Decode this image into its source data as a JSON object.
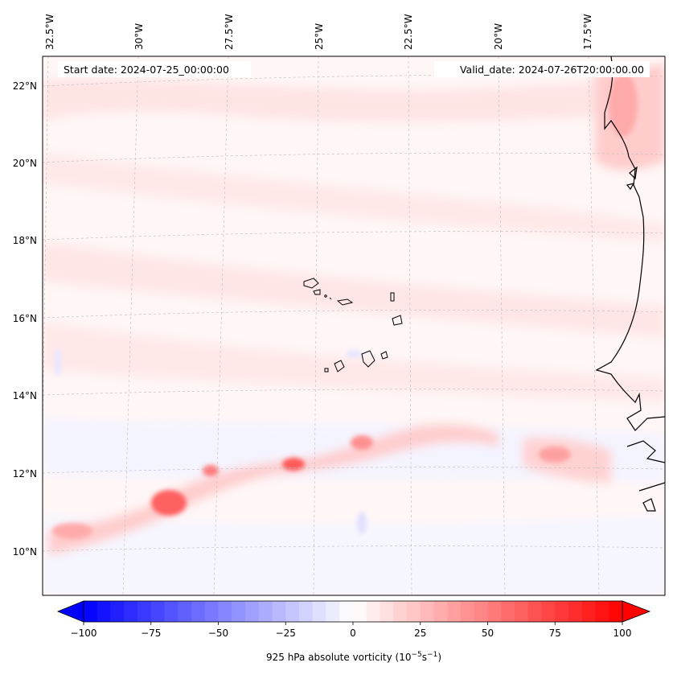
{
  "header": {
    "start_date": "Start date: 2024-07-25_00:00:00",
    "valid_date": "Valid_date: 2024-07-26T20:00:00.00"
  },
  "longitude_labels": [
    "32.5°W",
    "30°W",
    "27.5°W",
    "25°W",
    "22.5°W",
    "20°W",
    "17.5°W"
  ],
  "latitude_labels": [
    "22°N",
    "20°N",
    "18°N",
    "16°N",
    "14°N",
    "12°N",
    "10°N"
  ],
  "colorbar": {
    "ticks": [
      "−100",
      "−75",
      "−50",
      "−25",
      "0",
      "25",
      "50",
      "75",
      "100"
    ],
    "label_main": "925 hPa absolute vorticity (10",
    "label_exp1": "−5",
    "label_mid": "s",
    "label_exp2": "−1",
    "label_close": ")",
    "min": -100,
    "max": 100,
    "negative_color": "#0000ff",
    "positive_color": "#ff0000"
  }
}
